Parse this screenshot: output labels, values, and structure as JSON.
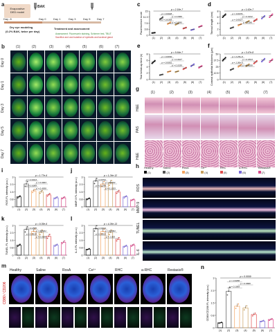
{
  "panels": {
    "a": {
      "label": "a",
      "model_text": "Evaporative",
      "model_text2": "DED model",
      "drug": "BAK",
      "day_labels": [
        "Day -5",
        "Day 0",
        "Day 1",
        "Day 3",
        "Day 5",
        "Day 7"
      ],
      "phase1": "Dry eye modeling",
      "phase1_sub": "(0.2% BAK, twice per day)",
      "phase2": "Treatment and assessment",
      "legend1": "Assessment: Fluorescein staining, Schirmer test, TBUT",
      "legend2": "Sacrifice and and isolation of eyeballs and lacrimal gland"
    },
    "b": {
      "label": "b",
      "columns": [
        "(1)",
        "(2)",
        "(3)",
        "(4)",
        "(5)",
        "(6)",
        "(7)"
      ],
      "rows": [
        "Day 0",
        "Day 1",
        "Day 3",
        "Day 5",
        "Day 7"
      ]
    },
    "c": {
      "label": "c",
      "ylabel": "Fluorescence score",
      "p_top": "p = 2.15e-7",
      "p_vals": [
        "p = 0.0048",
        "p = 0.0366",
        "p = 0.0365",
        "p = 0.0090"
      ]
    },
    "d": {
      "label": "d",
      "ylabel": "Thread length (mm)",
      "p_top": "p = 1.62e-7",
      "p_vals": [
        "p = 0.0079",
        "p = 0.0412",
        "p = 0.0027",
        "p = 1.186"
      ]
    },
    "e": {
      "label": "e",
      "ylabel": "Tear break-up time (s)",
      "p_top": "p = 5.64e-7",
      "p_vals": [
        "p = 0.0830",
        "p = 0.0107",
        "p = 0.0061",
        "p = 0.0339"
      ]
    },
    "f": {
      "label": "f",
      "ylabel": "Corneal epithelial thickness (μm)",
      "p_top": "p = 3.47e-8",
      "p_vals": [
        "p = 2.25e-8",
        "p = 0.9813",
        "p = 1.36e-5",
        "p = 0.0038"
      ]
    },
    "g": {
      "label": "g",
      "columns": [
        "(1)",
        "(2)",
        "(3)",
        "(4)",
        "(5)",
        "(6)",
        "(7)"
      ],
      "rows": [
        "H&E",
        "PAS",
        "H&E"
      ]
    },
    "i": {
      "label": "i",
      "ylabel": "ROS FL intensity (a.u.)",
      "p_top": "p = 1.77e-6",
      "p_vals": [
        "p = 0.0013",
        "p = 0.0003",
        "p = 0.0089",
        "p = 0.4938"
      ]
    },
    "j": {
      "label": "j",
      "ylabel": "MMP-9 FL intensity (a.u.)",
      "p_top": "p = 1.24e-12",
      "p_vals": [
        "p = 0.8791",
        "p = 0.0011",
        "p = 0.1296",
        "p = 0.1025"
      ]
    },
    "k": {
      "label": "k",
      "ylabel": "TUNEL FL intensity (a.u.)",
      "p_top": "p = 9.35e-6",
      "p_vals": [
        "p = 0.2555",
        "p = 0.8421",
        "p = 0.0130",
        "p = 0.0004"
      ]
    },
    "l": {
      "label": "l",
      "ylabel": "IL-6 FL intensity (a.u.)",
      "p_top": "p = 4.26e-13",
      "p_vals": [
        "p = 0.0014",
        "p = 0.0001",
        "p = 0.0013",
        "p = 1.000"
      ]
    },
    "h": {
      "label": "h",
      "groups": [
        "Healthy",
        "Saline",
        "RosA",
        "Ce³⁺",
        "RHC",
        "a-RHC",
        "Restasis®"
      ],
      "nums": [
        "(1)",
        "(2)",
        "(3)",
        "(4)",
        "(5)",
        "(6)",
        "(7)"
      ],
      "rows": [
        "ROS",
        "MMP-9",
        "TUNEL",
        "IL-6"
      ]
    },
    "m": {
      "label": "m",
      "groups": [
        "Healthy",
        "Saline",
        "RosA",
        "Ce³⁺",
        "RHC",
        "a-RHC",
        "Restasis®"
      ],
      "ylabel": "CD80 / CD206"
    },
    "n": {
      "label": "n",
      "ylabel": "CD80/CD206 FL intensity (a.u.)",
      "p_top": "p = 0.0009",
      "p_vals": [
        "p = 0.0058",
        "p = 0.6666",
        "p = 0.1065"
      ]
    },
    "x_ticks": [
      "(1)",
      "(2)",
      "(3)",
      "(4)",
      "(5)",
      "(6)",
      "(7)"
    ]
  },
  "chart_data": [
    {
      "type": "scatter",
      "panel": "c",
      "title": "",
      "xlabel": "",
      "ylabel": "Fluorescence score",
      "categories": [
        "(1)",
        "(2)",
        "(3)",
        "(4)",
        "(5)",
        "(6)",
        "(7)"
      ],
      "values": [
        1.5,
        10.5,
        7.5,
        7.0,
        4.5,
        3.5,
        5.5
      ],
      "ylim": [
        0,
        15
      ]
    },
    {
      "type": "scatter",
      "panel": "d",
      "title": "",
      "xlabel": "",
      "ylabel": "Thread length (mm)",
      "categories": [
        "(1)",
        "(2)",
        "(3)",
        "(4)",
        "(5)",
        "(6)",
        "(7)"
      ],
      "values": [
        6.5,
        2.5,
        3.5,
        4.5,
        5.0,
        6.0,
        6.5
      ],
      "ylim": [
        0,
        8
      ]
    },
    {
      "type": "scatter",
      "panel": "e",
      "title": "",
      "xlabel": "",
      "ylabel": "Tear break-up time (s)",
      "categories": [
        "(1)",
        "(2)",
        "(3)",
        "(4)",
        "(5)",
        "(6)",
        "(7)"
      ],
      "values": [
        5.5,
        1.5,
        2.5,
        2.5,
        3.5,
        4.5,
        4.0
      ],
      "ylim": [
        0,
        8
      ]
    },
    {
      "type": "scatter",
      "panel": "f",
      "title": "",
      "xlabel": "",
      "ylabel": "Corneal epithelial thickness (μm)",
      "categories": [
        "(1)",
        "(2)",
        "(3)",
        "(4)",
        "(5)",
        "(6)",
        "(7)"
      ],
      "values": [
        40,
        20,
        27,
        28,
        34,
        38,
        37
      ],
      "ylim": [
        0,
        50
      ]
    },
    {
      "type": "bar",
      "panel": "i",
      "title": "",
      "xlabel": "",
      "ylabel": "ROS FL intensity (a.u.)",
      "categories": [
        "(1)",
        "(2)",
        "(3)",
        "(4)",
        "(5)",
        "(6)",
        "(7)"
      ],
      "values": [
        1.0,
        2.3,
        1.6,
        1.5,
        1.2,
        0.9,
        0.9
      ],
      "ylim": [
        0,
        3
      ]
    },
    {
      "type": "bar",
      "panel": "j",
      "title": "",
      "xlabel": "",
      "ylabel": "MMP-9 FL intensity (a.u.)",
      "categories": [
        "(1)",
        "(2)",
        "(3)",
        "(4)",
        "(5)",
        "(6)",
        "(7)"
      ],
      "values": [
        0.8,
        2.6,
        2.3,
        2.4,
        1.5,
        1.0,
        0.7
      ],
      "ylim": [
        0,
        3
      ]
    },
    {
      "type": "bar",
      "panel": "k",
      "title": "",
      "xlabel": "",
      "ylabel": "TUNEL FL intensity (a.u.)",
      "categories": [
        "(1)",
        "(2)",
        "(3)",
        "(4)",
        "(5)",
        "(6)",
        "(7)"
      ],
      "values": [
        1.0,
        2.6,
        2.4,
        2.3,
        1.9,
        1.0,
        1.3
      ],
      "ylim": [
        0,
        3
      ]
    },
    {
      "type": "bar",
      "panel": "l",
      "title": "",
      "xlabel": "",
      "ylabel": "IL-6 FL intensity (a.u.)",
      "categories": [
        "(1)",
        "(2)",
        "(3)",
        "(4)",
        "(5)",
        "(6)",
        "(7)"
      ],
      "values": [
        0.6,
        2.7,
        2.4,
        2.3,
        1.6,
        0.9,
        1.0
      ],
      "ylim": [
        0,
        3
      ]
    },
    {
      "type": "bar",
      "panel": "n",
      "title": "",
      "xlabel": "",
      "ylabel": "CD80/CD206 FL intensity (a.u.)",
      "categories": [
        "(1)",
        "(2)",
        "(3)",
        "(4)",
        "(5)",
        "(6)",
        "(7)"
      ],
      "values": [
        0.3,
        2.2,
        1.3,
        1.2,
        0.8,
        0.4,
        0.5
      ],
      "ylim": [
        0,
        3
      ]
    }
  ],
  "colors": {
    "g1": "#111111",
    "g2": "#555555",
    "g3": "#f4a460",
    "g4": "#c8a060",
    "g5": "#e05050",
    "g6": "#7a6ad8",
    "g7": "#d94a8a"
  }
}
